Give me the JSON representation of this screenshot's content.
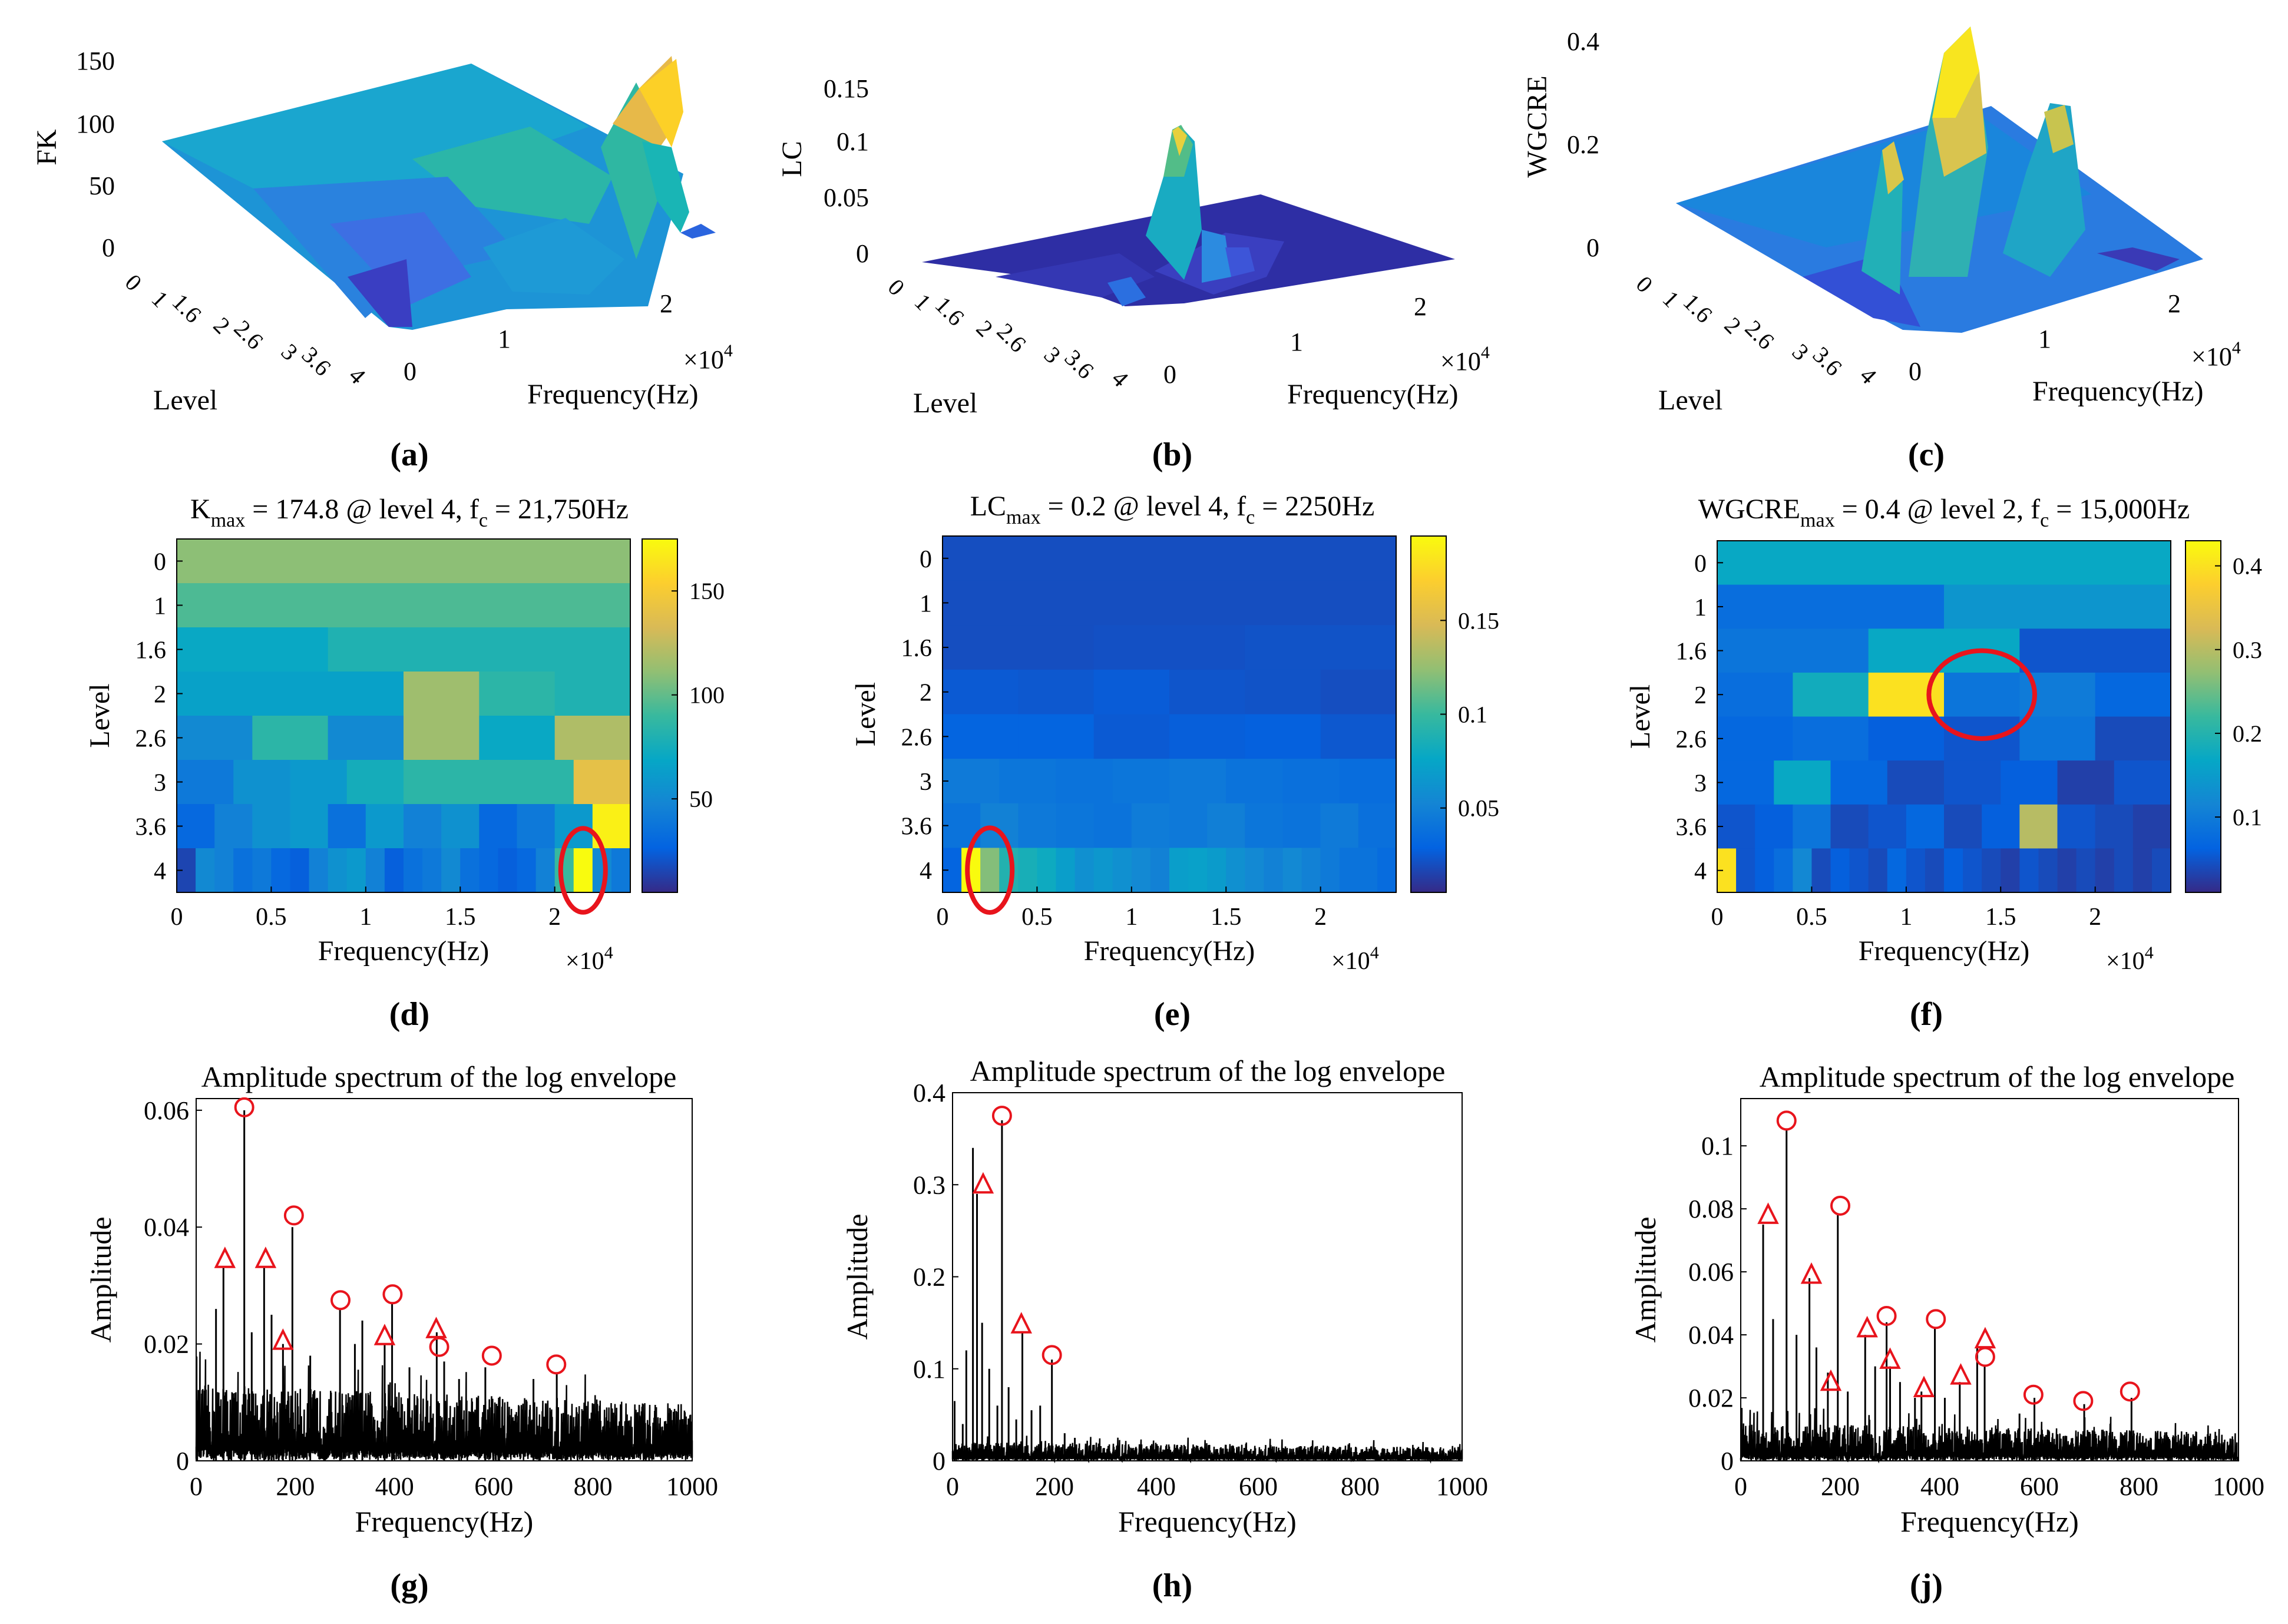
{
  "figure": {
    "captions": [
      "(a)",
      "(b)",
      "(c)",
      "(d)",
      "(e)",
      "(f)",
      "(g)",
      "(h)",
      "(j)"
    ],
    "colors": {
      "highlight": "#e8141c",
      "axis": "#000000",
      "line": "#000000",
      "parula": [
        "#352a87",
        "#0363e1",
        "#1485d4",
        "#06a7c6",
        "#38b99e",
        "#92bf73",
        "#d9ba56",
        "#fcce2e",
        "#f9fb0e"
      ]
    }
  },
  "chart_data": [
    {
      "id": "a",
      "type": "surface3d",
      "zlabel": "FK",
      "xlabel": "Frequency(Hz)",
      "ylabel": "Level",
      "xticks": [
        "0",
        "1",
        "2"
      ],
      "xexp": "×10",
      "xexp_pow": "4",
      "yticks": [
        "0",
        "1",
        "1.6",
        "2",
        "2.6",
        "3",
        "3.6",
        "4"
      ],
      "zticks": [
        "0",
        "50",
        "100",
        "150"
      ],
      "zlim": [
        0,
        175
      ],
      "note": "irregular surface; peak ~160 near level 4, 21,750 Hz"
    },
    {
      "id": "b",
      "type": "surface3d",
      "zlabel": "LC",
      "xlabel": "Frequency(Hz)",
      "ylabel": "Level",
      "xticks": [
        "0",
        "1",
        "2"
      ],
      "xexp": "×10",
      "xexp_pow": "4",
      "yticks": [
        "0",
        "1",
        "1.6",
        "2",
        "2.6",
        "3",
        "3.6",
        "4"
      ],
      "zticks": [
        "0",
        "0.05",
        "0.1",
        "0.15"
      ],
      "zlim": [
        0,
        0.2
      ],
      "note": "flat surface with single spike ~0.12 near level 4, 2250 Hz"
    },
    {
      "id": "c",
      "type": "surface3d",
      "zlabel": "WGCRE",
      "xlabel": "Frequency(Hz)",
      "ylabel": "Level",
      "xticks": [
        "0",
        "1",
        "2"
      ],
      "xexp": "×10",
      "xexp_pow": "4",
      "yticks": [
        "0",
        "1",
        "1.6",
        "2",
        "2.6",
        "3",
        "3.6",
        "4"
      ],
      "zticks": [
        "0",
        "0.2",
        "0.4"
      ],
      "zlim": [
        0,
        0.45
      ],
      "note": "peaks ~0.42 and ~0.27 around levels 2 and 3.6"
    },
    {
      "id": "d",
      "type": "heatmap",
      "title_parts": [
        "K",
        "max",
        " = 174.8 @ level 4, f",
        "c",
        " = 21,750Hz"
      ],
      "xlabel": "Frequency(Hz)",
      "ylabel": "Level",
      "xticks": [
        "0",
        "0.5",
        "1",
        "1.5",
        "2"
      ],
      "xtick_values": [
        0,
        5000,
        10000,
        15000,
        20000
      ],
      "xexp": "×10",
      "xexp_pow": "4",
      "xlim": [
        0,
        24000
      ],
      "levels": [
        "0",
        "1",
        "1.6",
        "2",
        "2.6",
        "3",
        "3.6",
        "4"
      ],
      "clim": [
        5,
        175
      ],
      "cbar_ticks": [
        50,
        100,
        150
      ],
      "rows": [
        [
          110
        ],
        [
          95,
          95
        ],
        [
          70,
          80,
          80
        ],
        [
          65,
          65,
          65,
          115,
          85,
          80
        ],
        [
          50,
          85,
          50,
          115,
          70,
          120
        ],
        [
          40,
          55,
          60,
          75,
          85,
          85,
          85,
          140
        ],
        [
          30,
          45,
          55,
          60,
          35,
          60,
          45,
          55,
          30,
          40,
          60,
          170
        ],
        [
          15,
          50,
          45,
          35,
          40,
          30,
          25,
          45,
          55,
          60,
          45,
          25,
          35,
          40,
          50,
          35,
          30,
          25,
          30,
          45,
          90,
          174.8,
          50,
          40
        ]
      ],
      "highlight": {
        "level": "4",
        "freq": 21750
      }
    },
    {
      "id": "e",
      "type": "heatmap",
      "title_parts": [
        "LC",
        "max",
        " = 0.2 @ level 4, f",
        "c",
        " = 2250Hz"
      ],
      "xlabel": "Frequency(Hz)",
      "ylabel": "Level",
      "xticks": [
        "0",
        "0.5",
        "1",
        "1.5",
        "2"
      ],
      "xtick_values": [
        0,
        5000,
        10000,
        15000,
        20000
      ],
      "xexp": "×10",
      "xexp_pow": "4",
      "xlim": [
        0,
        24000
      ],
      "levels": [
        "0",
        "1",
        "1.6",
        "2",
        "2.6",
        "3",
        "3.6",
        "4"
      ],
      "clim": [
        0.005,
        0.195
      ],
      "cbar_ticks": [
        0.05,
        0.1,
        0.15
      ],
      "rows": [
        [
          0.02
        ],
        [
          0.02,
          0.02
        ],
        [
          0.02,
          0.021,
          0.022
        ],
        [
          0.025,
          0.024,
          0.026,
          0.023,
          0.022,
          0.02
        ],
        [
          0.03,
          0.03,
          0.025,
          0.027,
          0.028,
          0.024
        ],
        [
          0.045,
          0.042,
          0.04,
          0.042,
          0.044,
          0.04,
          0.038,
          0.036
        ],
        [
          0.04,
          0.05,
          0.044,
          0.042,
          0.04,
          0.046,
          0.044,
          0.048,
          0.042,
          0.04,
          0.045,
          0.038
        ],
        [
          0.03,
          0.2,
          0.12,
          0.09,
          0.085,
          0.08,
          0.07,
          0.06,
          0.065,
          0.06,
          0.055,
          0.05,
          0.07,
          0.072,
          0.068,
          0.06,
          0.055,
          0.05,
          0.055,
          0.05,
          0.045,
          0.04,
          0.04,
          0.035
        ]
      ],
      "highlight": {
        "level": "4",
        "freq": 2250
      }
    },
    {
      "id": "f",
      "type": "heatmap",
      "title_parts": [
        "WGCRE",
        "max",
        " = 0.4 @ level 2, f",
        "c",
        " = 15,000Hz"
      ],
      "xlabel": "Frequency(Hz)",
      "ylabel": "Level",
      "xticks": [
        "0",
        "0.5",
        "1",
        "1.5",
        "2"
      ],
      "xtick_values": [
        0,
        5000,
        10000,
        15000,
        20000
      ],
      "xexp": "×10",
      "xexp_pow": "4",
      "xlim": [
        0,
        24000
      ],
      "levels": [
        "0",
        "1",
        "1.6",
        "2",
        "2.6",
        "3",
        "3.6",
        "4"
      ],
      "clim": [
        0.01,
        0.43
      ],
      "cbar_ticks": [
        0.1,
        0.2,
        0.3,
        0.4
      ],
      "rows": [
        [
          0.17
        ],
        [
          0.08,
          0.14
        ],
        [
          0.09,
          0.17,
          0.05
        ],
        [
          0.08,
          0.18,
          0.4,
          0.09,
          0.1,
          0.07
        ],
        [
          0.07,
          0.08,
          0.06,
          0.05,
          0.09,
          0.04
        ],
        [
          0.07,
          0.17,
          0.07,
          0.04,
          0.05,
          0.06,
          0.03,
          0.05
        ],
        [
          0.05,
          0.06,
          0.09,
          0.04,
          0.05,
          0.07,
          0.04,
          0.06,
          0.3,
          0.05,
          0.04,
          0.03
        ],
        [
          0.4,
          0.05,
          0.06,
          0.08,
          0.12,
          0.04,
          0.06,
          0.05,
          0.04,
          0.07,
          0.05,
          0.04,
          0.06,
          0.05,
          0.04,
          0.03,
          0.05,
          0.04,
          0.03,
          0.04,
          0.03,
          0.04,
          0.03,
          0.04
        ]
      ],
      "highlight": {
        "level": "2",
        "freq": 15000
      }
    },
    {
      "id": "g",
      "type": "line",
      "title": "Amplitude spectrum of the log envelope",
      "xlabel": "Frequency(Hz)",
      "ylabel": "Amplitude",
      "xlim": [
        0,
        1000
      ],
      "ylim": [
        0,
        0.062
      ],
      "xticks": [
        0,
        200,
        400,
        600,
        800,
        1000
      ],
      "yticks": [
        0,
        0.02,
        0.04,
        0.06
      ],
      "ytick_labels": [
        "0",
        "0.02",
        "0.04",
        "0.06"
      ],
      "noise_level": 0.0072,
      "noise_spread": 0.0085,
      "spikes": [
        [
          40,
          0.026
        ],
        [
          55,
          0.033
        ],
        [
          97,
          0.06
        ],
        [
          112,
          0.022
        ],
        [
          137,
          0.033
        ],
        [
          152,
          0.025
        ],
        [
          175,
          0.02
        ],
        [
          194,
          0.04
        ],
        [
          230,
          0.018
        ],
        [
          290,
          0.026
        ],
        [
          320,
          0.02
        ],
        [
          335,
          0.024
        ],
        [
          380,
          0.02
        ],
        [
          395,
          0.027
        ],
        [
          430,
          0.016
        ],
        [
          485,
          0.022
        ],
        [
          500,
          0.017
        ],
        [
          530,
          0.014
        ],
        [
          583,
          0.016
        ],
        [
          680,
          0.014
        ],
        [
          727,
          0.015
        ]
      ],
      "circles": [
        [
          97,
          0.0605
        ],
        [
          197,
          0.042
        ],
        [
          291,
          0.0275
        ],
        [
          396,
          0.0285
        ],
        [
          490,
          0.0195
        ],
        [
          596,
          0.018
        ],
        [
          726,
          0.0165
        ]
      ],
      "triangles": [
        [
          58,
          0.0345
        ],
        [
          140,
          0.0345
        ],
        [
          175,
          0.0205
        ],
        [
          380,
          0.0213
        ],
        [
          484,
          0.0225
        ]
      ]
    },
    {
      "id": "h",
      "type": "line",
      "title": "Amplitude spectrum of the log envelope",
      "xlabel": "Frequency(Hz)",
      "ylabel": "Amplitude",
      "xlim": [
        0,
        1000
      ],
      "ylim": [
        0,
        0.4
      ],
      "xticks": [
        0,
        200,
        400,
        600,
        800,
        1000
      ],
      "yticks": [
        0,
        0.1,
        0.2,
        0.3,
        0.4
      ],
      "ytick_labels": [
        "0",
        "0.1",
        "0.2",
        "0.3",
        "0.4"
      ],
      "noise_level": 0.012,
      "noise_spread": 0.012,
      "spikes": [
        [
          4,
          0.065
        ],
        [
          20,
          0.04
        ],
        [
          27,
          0.12
        ],
        [
          40,
          0.34
        ],
        [
          48,
          0.29
        ],
        [
          58,
          0.15
        ],
        [
          72,
          0.1
        ],
        [
          88,
          0.06
        ],
        [
          97,
          0.37
        ],
        [
          110,
          0.08
        ],
        [
          125,
          0.045
        ],
        [
          137,
          0.14
        ],
        [
          155,
          0.055
        ],
        [
          172,
          0.06
        ],
        [
          195,
          0.11
        ],
        [
          220,
          0.03
        ],
        [
          240,
          0.025
        ]
      ],
      "circles": [
        [
          97,
          0.375
        ],
        [
          195,
          0.115
        ]
      ],
      "triangles": [
        [
          60,
          0.3
        ],
        [
          135,
          0.148
        ]
      ]
    },
    {
      "id": "j",
      "type": "line",
      "title": "Amplitude spectrum of the log envelope",
      "xlabel": "Frequency(Hz)",
      "ylabel": "Amplitude",
      "xlim": [
        0,
        1000
      ],
      "ylim": [
        0,
        0.115
      ],
      "xticks": [
        0,
        200,
        400,
        600,
        800,
        1000
      ],
      "yticks": [
        0,
        0.02,
        0.04,
        0.06,
        0.08,
        0.1
      ],
      "ytick_labels": [
        "0",
        "0.02",
        "0.04",
        "0.06",
        "0.08",
        "0.1"
      ],
      "noise_level": 0.0065,
      "noise_spread": 0.008,
      "spikes": [
        [
          45,
          0.075
        ],
        [
          65,
          0.045
        ],
        [
          92,
          0.105
        ],
        [
          112,
          0.04
        ],
        [
          138,
          0.058
        ],
        [
          152,
          0.036
        ],
        [
          175,
          0.028
        ],
        [
          195,
          0.078
        ],
        [
          215,
          0.022
        ],
        [
          250,
          0.04
        ],
        [
          270,
          0.03
        ],
        [
          293,
          0.044
        ],
        [
          300,
          0.03
        ],
        [
          320,
          0.025
        ],
        [
          350,
          0.02
        ],
        [
          363,
          0.022
        ],
        [
          390,
          0.042
        ],
        [
          410,
          0.02
        ],
        [
          440,
          0.025
        ],
        [
          475,
          0.036
        ],
        [
          490,
          0.03
        ],
        [
          560,
          0.015
        ],
        [
          590,
          0.02
        ],
        [
          690,
          0.018
        ],
        [
          785,
          0.02
        ]
      ],
      "circles": [
        [
          92,
          0.108
        ],
        [
          200,
          0.081
        ],
        [
          293,
          0.046
        ],
        [
          392,
          0.045
        ],
        [
          491,
          0.033
        ],
        [
          588,
          0.021
        ],
        [
          688,
          0.019
        ],
        [
          782,
          0.022
        ]
      ],
      "triangles": [
        [
          55,
          0.078
        ],
        [
          142,
          0.059
        ],
        [
          181,
          0.025
        ],
        [
          254,
          0.042
        ],
        [
          300,
          0.032
        ],
        [
          368,
          0.023
        ],
        [
          442,
          0.027
        ],
        [
          491,
          0.0385
        ]
      ]
    }
  ]
}
